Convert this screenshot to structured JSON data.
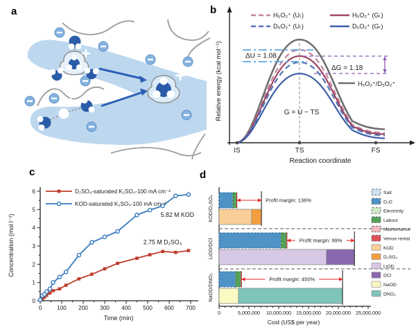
{
  "figure": {
    "panel_labels": {
      "a": "a",
      "b": "b",
      "c": "c",
      "d": "d"
    }
  },
  "panel_a": {
    "content": "schematic of hydrated proton transfer in a polymer membrane channel",
    "plus_symbol": "+",
    "minus_symbol": "−"
  },
  "chart_data": [
    {
      "id": "b",
      "type": "line",
      "xlabel": "Reaction coordinate",
      "ylabel": "Relative energy (kcal mol⁻¹)",
      "xticks": [
        "IS",
        "TS",
        "FS"
      ],
      "curves": [
        {
          "label": "H₅O₂⁺/D₅O₂⁺",
          "color": "#6e6e6e",
          "dash": false,
          "peak": 1.0,
          "end": 0.13,
          "width": 2.6
        },
        {
          "label": "H₅O₂⁺ (Uₜ)",
          "color": "#c4849c",
          "dash": true,
          "peak": 0.9,
          "end": 0.095,
          "width": 2.2
        },
        {
          "label": "H₅O₂⁺ (Gₜ)",
          "color": "#9d4663",
          "dash": false,
          "peak": 0.84,
          "end": 0.082,
          "width": 2.2
        },
        {
          "label": "D₅O₂⁺ (Uₜ)",
          "color": "#5472b8",
          "dash": true,
          "peak": 0.78,
          "end": 0.068,
          "width": 2.2
        },
        {
          "label": "D₅O₂⁺ (Gₜ)",
          "color": "#3b5ea9",
          "dash": false,
          "peak": 0.67,
          "end": 0.042,
          "width": 2.2
        }
      ],
      "legend": [
        {
          "label": "H₅O₂⁺ (Uₜ)",
          "color": "#c4849c",
          "dash": true
        },
        {
          "label": "H₅O₂⁺ (Gₜ)",
          "color": "#9d4663",
          "dash": false
        },
        {
          "label": "D₅O₂⁺ (Uₜ)",
          "color": "#5472b8",
          "dash": true
        },
        {
          "label": "D₅O₂⁺ (Gₜ)",
          "color": "#3b5ea9",
          "dash": false
        }
      ],
      "annotations": {
        "delta_u": {
          "text": "ΔU = 1.08",
          "color": "#5aa7e0"
        },
        "delta_g": {
          "text": "ΔG = 1.18",
          "color": "#8e5bb5"
        },
        "equation": "G = U − TS",
        "gray_curve_label": "H₅O₂⁺/D₅O₂⁺"
      }
    },
    {
      "id": "c",
      "type": "line",
      "xlabel": "Time (min)",
      "ylabel": "Concentration (mol l⁻¹)",
      "xlim": [
        0,
        700
      ],
      "ylim": [
        0,
        6
      ],
      "xticks": [
        0,
        100,
        200,
        300,
        400,
        500,
        600,
        700
      ],
      "yticks": [
        0,
        1,
        2,
        3,
        4,
        5,
        6
      ],
      "series": [
        {
          "name": "D₂SO₄-saturated K₂SO₄-100 mA cm⁻²",
          "color": "#bf3b2b",
          "marker": "square-filled",
          "x": [
            0,
            10,
            20,
            30,
            45,
            60,
            90,
            120,
            180,
            240,
            300,
            360,
            450,
            510,
            570,
            630,
            690
          ],
          "y": [
            0.02,
            0.1,
            0.2,
            0.3,
            0.42,
            0.55,
            0.65,
            0.85,
            1.2,
            1.45,
            1.75,
            2.05,
            2.33,
            2.52,
            2.7,
            2.65,
            2.75
          ]
        },
        {
          "name": "KOD-saturated K₂SO₄-100 mA cm⁻²",
          "color": "#3579bd",
          "marker": "circle-open",
          "x": [
            0,
            10,
            20,
            30,
            45,
            60,
            90,
            120,
            180,
            240,
            300,
            360,
            450,
            510,
            570,
            630,
            690
          ],
          "y": [
            0.05,
            0.28,
            0.35,
            0.5,
            0.65,
            1.0,
            1.3,
            1.58,
            2.5,
            3.2,
            3.5,
            3.8,
            4.7,
            4.97,
            5.2,
            5.75,
            5.82
          ]
        }
      ],
      "annotations": [
        {
          "text": "5.82 M KOD",
          "x": 560,
          "y": 4.6
        },
        {
          "text": "2.75 M D₂SO₄",
          "x": 480,
          "y": 3.1
        }
      ]
    },
    {
      "id": "d",
      "type": "stacked-bar-horizontal",
      "xlabel": "Cost (US$ per year)",
      "xlim": [
        0,
        25000000
      ],
      "xticks": [
        0,
        5000000,
        10000000,
        15000000,
        20000000,
        25000000
      ],
      "xtick_labels": [
        "0",
        "5,000,000",
        "10,000,000",
        "15,000,000",
        "20,000,000",
        "25,000,000"
      ],
      "groups": [
        {
          "label": "KOD/D₂SO₄",
          "cost": [
            {
              "key": "Salt",
              "value": 60000
            },
            {
              "key": "D₂O",
              "value": 2250000
            },
            {
              "key": "Electricity",
              "value": 60000
            },
            {
              "key": "Labour",
              "value": 550000
            },
            {
              "key": "Maintenance",
              "value": 40000
            },
            {
              "key": "Venue rental",
              "value": 40000
            }
          ],
          "revenue": [
            {
              "key": "KOD",
              "value": 5450000
            },
            {
              "key": "D₂SO₄",
              "value": 1650000
            }
          ],
          "profit_margin": "Profit margin: 136%",
          "margin_text_pos": "right"
        },
        {
          "label": "LiOD/DCl",
          "cost": [
            {
              "key": "Salt",
              "value": 80000
            },
            {
              "key": "D₂O",
              "value": 10300000
            },
            {
              "key": "Electricity",
              "value": 80000
            },
            {
              "key": "Labour",
              "value": 850000
            },
            {
              "key": "Maintenance",
              "value": 50000
            },
            {
              "key": "Venue rental",
              "value": 40000
            }
          ],
          "revenue": [
            {
              "key": "LiOD",
              "value": 18000000
            },
            {
              "key": "DCl",
              "value": 4700000
            }
          ],
          "profit_margin": "Profit margin: 99%",
          "margin_text_pos": "middle"
        },
        {
          "label": "NaOD/DNO₃",
          "cost": [
            {
              "key": "Salt",
              "value": 60000
            },
            {
              "key": "D₂O",
              "value": 2700000
            },
            {
              "key": "Electricity",
              "value": 60000
            },
            {
              "key": "Labour",
              "value": 850000
            },
            {
              "key": "Maintenance",
              "value": 50000
            },
            {
              "key": "Venue rental",
              "value": 60000
            }
          ],
          "revenue": [
            {
              "key": "NaOD",
              "value": 3250000
            },
            {
              "key": "DNO₃",
              "value": 17450000
            }
          ],
          "profit_margin": "Profit margin: 450%",
          "margin_text_pos": "middle"
        }
      ],
      "legend": [
        {
          "key": "Salt",
          "fill": "#cfe0f1",
          "border": "dashed"
        },
        {
          "key": "D₂O",
          "fill": "#4f93c6",
          "border": "dashed"
        },
        {
          "key": "Electricity",
          "fill": "#cde8c4",
          "border": "dashed"
        },
        {
          "key": "Labour",
          "fill": "#54a257",
          "border": "dashed"
        },
        {
          "key": "Maintenance",
          "fill": "#f5b9bd",
          "border": "dashed"
        },
        {
          "key": "Venue rental",
          "fill": "#e05257",
          "border": "dashed"
        },
        {
          "key": "KOD",
          "fill": "#f9cf97",
          "border": "solid"
        },
        {
          "key": "D₂SO₄",
          "fill": "#f49d3e",
          "border": "solid"
        },
        {
          "key": "LiOD",
          "fill": "#d7c8e6",
          "border": "solid"
        },
        {
          "key": "DCl",
          "fill": "#8a68af",
          "border": "solid"
        },
        {
          "key": "NaOD",
          "fill": "#fbf9c4",
          "border": "solid"
        },
        {
          "key": "DNO₃",
          "fill": "#7dc4ba",
          "border": "solid"
        }
      ],
      "arrow_color": "#e8231f"
    }
  ]
}
